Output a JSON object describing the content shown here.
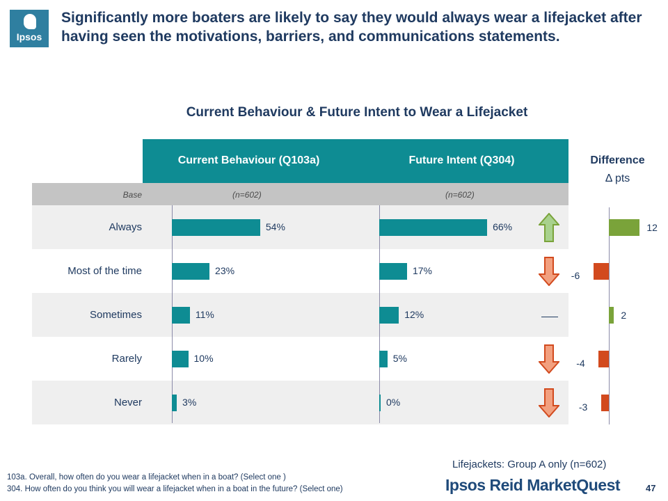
{
  "header": {
    "logo_text": "Ipsos",
    "headline": "Significantly more boaters are likely to say they would always wear a lifejacket after having seen the motivations, barriers, and communications statements."
  },
  "chart_data": {
    "type": "bar",
    "title": "Current Behaviour & Future Intent to Wear a Lifejacket",
    "base_label": "Base",
    "categories": [
      "Always",
      "Most of the time",
      "Sometimes",
      "Rarely",
      "Never"
    ],
    "series": [
      {
        "name": "Current Behaviour (Q103a)",
        "base": "(n=602)",
        "values": [
          54,
          23,
          11,
          10,
          3
        ],
        "labels": [
          "54%",
          "23%",
          "11%",
          "10%",
          "3%"
        ]
      },
      {
        "name": "Future Intent (Q304)",
        "base": "(n=602)",
        "values": [
          66,
          17,
          12,
          5,
          0
        ],
        "labels": [
          "66%",
          "17%",
          "12%",
          "5%",
          "0%"
        ]
      }
    ],
    "difference": {
      "title": "Difference",
      "subtitle": "Δ pts",
      "values": [
        12,
        -6,
        2,
        -4,
        -3
      ],
      "labels": [
        "12",
        "-6",
        "2",
        "-4",
        "-3"
      ],
      "positive_color": "#7aa33a",
      "negative_color": "#d24a1e"
    },
    "significance": [
      "up",
      "down",
      "none",
      "down",
      "down"
    ],
    "bar_color": "#0e8c93",
    "header_color": "#0e8c93",
    "arrow_up_color": "#a8d18d",
    "arrow_down_color": "#f2a07f"
  },
  "footer": {
    "note_q103a": "103a. Overall, how often do you wear a lifejacket when in a boat? (Select one )",
    "note_q304": "304. How often do you think you will wear a lifejacket when in a boat in the future? (Select one)",
    "group": "Lifejackets: Group A only (n=602)",
    "brand": "Ipsos Reid MarketQuest",
    "page": "47"
  }
}
